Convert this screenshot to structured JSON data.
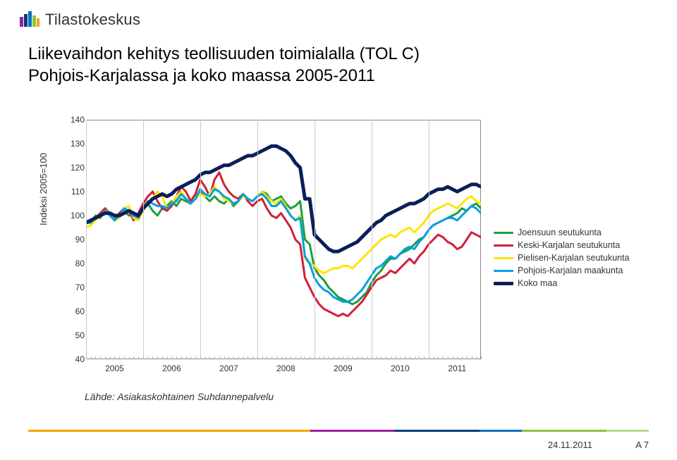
{
  "logo_text": "Tilastokeskus",
  "title": "Liikevaihdon kehitys teollisuuden toimialalla (TOL C)\nPohjois-Karjalassa ja koko maassa 2005-2011",
  "y_axis_label": "Indeksi 2005=100",
  "source": "Lähde: Asiakaskohtainen Suhdannepalvelu",
  "date": "24.11.2011",
  "page_no": "A 7",
  "chart": {
    "type": "line",
    "background_color": "#ffffff",
    "grid_color": "#cccccc",
    "axis_color": "#888888",
    "ylim": [
      40,
      140
    ],
    "ytick_step": 10,
    "x_years": [
      "2005",
      "2006",
      "2007",
      "2008",
      "2009",
      "2010",
      "2011"
    ],
    "x_ticks_per_year": 12,
    "title_fontsize": 24,
    "label_fontsize": 13,
    "tick_fontsize": 12,
    "line_width": 3,
    "legend": {
      "position": "right",
      "items": [
        {
          "label": "Joensuun seutukunta",
          "color": "#1f9e3e",
          "width": 3
        },
        {
          "label": "Keski-Karjalan seutukunta",
          "color": "#d11e3a",
          "width": 3
        },
        {
          "label": "Pielisen-Karjalan seutukunta",
          "color": "#ffe500",
          "width": 3
        },
        {
          "label": "Pohjois-Karjalan maakunta",
          "color": "#00a0e0",
          "width": 3
        },
        {
          "label": "Koko maa",
          "color": "#0a1e5a",
          "width": 5
        }
      ]
    },
    "series": [
      {
        "name": "Joensuun seutukunta",
        "color": "#1f9e3e",
        "width": 3,
        "values": [
          98,
          97,
          100,
          99,
          103,
          101,
          98,
          100,
          102,
          100,
          101,
          99,
          104,
          105,
          102,
          100,
          103,
          104,
          106,
          104,
          107,
          106,
          105,
          107,
          110,
          108,
          106,
          108,
          106,
          105,
          107,
          104,
          106,
          109,
          107,
          106,
          108,
          110,
          109,
          106,
          107,
          108,
          105,
          103,
          104,
          106,
          90,
          88,
          78,
          75,
          73,
          70,
          68,
          66,
          65,
          64,
          63,
          64,
          66,
          68,
          72,
          75,
          77,
          80,
          82,
          82,
          84,
          85,
          86,
          88,
          90,
          91,
          94,
          96,
          97,
          98,
          99,
          100,
          101,
          103,
          102,
          104,
          105,
          103
        ]
      },
      {
        "name": "Keski-Karjalan seutukunta",
        "color": "#d11e3a",
        "width": 3,
        "values": [
          97,
          98,
          99,
          101,
          103,
          100,
          99,
          101,
          103,
          102,
          98,
          101,
          105,
          108,
          110,
          106,
          103,
          102,
          104,
          108,
          112,
          110,
          106,
          109,
          115,
          112,
          108,
          115,
          118,
          113,
          110,
          108,
          107,
          109,
          106,
          104,
          106,
          107,
          103,
          100,
          99,
          101,
          98,
          95,
          90,
          88,
          74,
          70,
          66,
          63,
          61,
          60,
          59,
          58,
          59,
          58,
          60,
          62,
          64,
          67,
          70,
          73,
          74,
          75,
          77,
          76,
          78,
          80,
          82,
          80,
          83,
          85,
          88,
          90,
          92,
          91,
          89,
          88,
          86,
          87,
          90,
          93,
          92,
          91
        ]
      },
      {
        "name": "Pielisen-Karjalan seutukunta",
        "color": "#ffe500",
        "width": 3,
        "values": [
          95,
          96,
          98,
          100,
          102,
          101,
          98,
          99,
          103,
          104,
          99,
          98,
          102,
          105,
          107,
          110,
          108,
          103,
          105,
          108,
          110,
          107,
          105,
          107,
          109,
          108,
          109,
          112,
          110,
          107,
          106,
          105,
          106,
          108,
          107,
          106,
          108,
          110,
          108,
          106,
          105,
          107,
          104,
          100,
          98,
          100,
          82,
          80,
          79,
          77,
          76,
          77,
          78,
          78,
          79,
          79,
          78,
          80,
          82,
          84,
          86,
          88,
          90,
          91,
          92,
          91,
          93,
          94,
          95,
          93,
          95,
          97,
          100,
          102,
          103,
          104,
          105,
          104,
          103,
          105,
          107,
          108,
          106,
          105
        ]
      },
      {
        "name": "Pohjois-Karjalan maakunta",
        "color": "#00a0e0",
        "width": 3,
        "values": [
          97,
          97,
          99,
          100,
          102,
          100,
          98,
          100,
          103,
          102,
          100,
          99,
          103,
          106,
          105,
          104,
          104,
          103,
          105,
          106,
          109,
          107,
          105,
          107,
          111,
          109,
          108,
          111,
          110,
          108,
          107,
          105,
          106,
          109,
          107,
          106,
          108,
          109,
          107,
          104,
          104,
          106,
          103,
          100,
          98,
          99,
          83,
          80,
          74,
          71,
          69,
          68,
          66,
          65,
          64,
          64,
          65,
          67,
          69,
          72,
          75,
          78,
          79,
          81,
          83,
          82,
          84,
          86,
          87,
          86,
          89,
          91,
          94,
          96,
          97,
          98,
          99,
          99,
          98,
          100,
          102,
          104,
          103,
          101
        ]
      },
      {
        "name": "Koko maa",
        "color": "#0a1e5a",
        "width": 5,
        "values": [
          97,
          98,
          99,
          100,
          101,
          101,
          100,
          100,
          101,
          102,
          101,
          100,
          103,
          105,
          107,
          108,
          109,
          108,
          109,
          111,
          112,
          113,
          114,
          115,
          117,
          118,
          118,
          119,
          120,
          121,
          121,
          122,
          123,
          124,
          125,
          125,
          126,
          127,
          128,
          129,
          129,
          128,
          127,
          125,
          122,
          120,
          107,
          107,
          92,
          90,
          88,
          86,
          85,
          85,
          86,
          87,
          88,
          89,
          91,
          93,
          95,
          97,
          98,
          100,
          101,
          102,
          103,
          104,
          105,
          105,
          106,
          107,
          109,
          110,
          111,
          111,
          112,
          111,
          110,
          111,
          112,
          113,
          113,
          112
        ]
      }
    ]
  },
  "footer_colors": [
    "#f7a600",
    "#9b1fa0",
    "#003d7a",
    "#0072bc",
    "#8bc53f",
    "#b2dd8b"
  ],
  "footer_segments": [
    400,
    120,
    120,
    60,
    120,
    60
  ]
}
